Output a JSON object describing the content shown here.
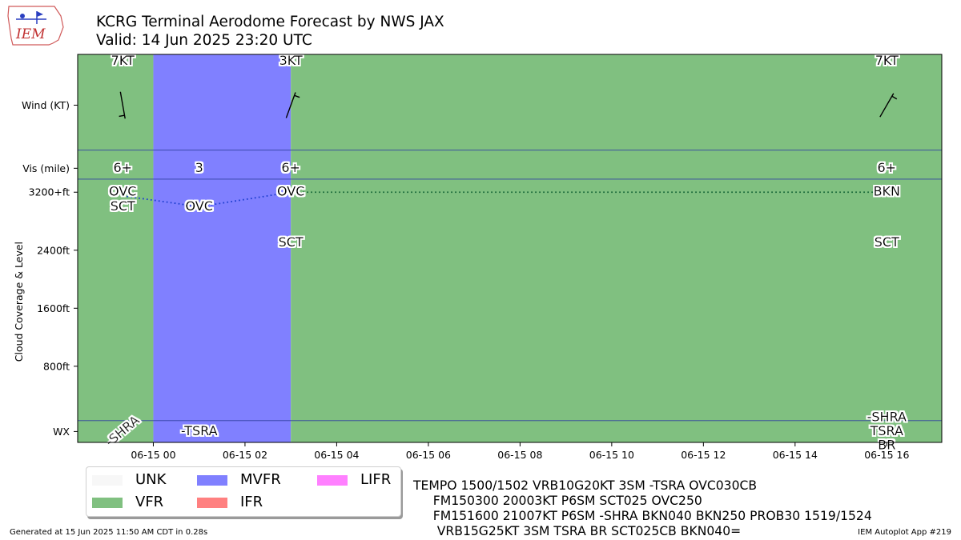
{
  "header": {
    "title": "KCRG Terminal Aerodome Forecast by NWS JAX",
    "subtitle": "Valid: 14 Jun 2025 23:20 UTC",
    "logo_text": "IEM"
  },
  "footer": {
    "generated": "Generated at 15 Jun 2025 11:50 AM CDT in 0.28s",
    "app": "IEM Autoplot App #219"
  },
  "legend": [
    {
      "label": "UNK",
      "color": "#f7f7f7"
    },
    {
      "label": "VFR",
      "color": "#80c080"
    },
    {
      "label": "MVFR",
      "color": "#8080ff"
    },
    {
      "label": "IFR",
      "color": "#ff8080"
    },
    {
      "label": "LIFR",
      "color": "#ff80ff"
    }
  ],
  "taf_text": [
    "TEMPO 1500/1502 VRB10G20KT 3SM -TSRA OVC030CB",
    "     FM150300 20003KT P6SM SCT025 OVC250",
    "     FM151600 21007KT P6SM -SHRA BKN040 BKN250 PROB30 1519/1524",
    "      VRB15G25KT 3SM TSRA BR SCT025CB BKN040="
  ],
  "chart_data": {
    "type": "timeline",
    "ylabel": "Cloud Coverage & Level",
    "x_ticks": [
      "06-15 00",
      "06-15 02",
      "06-15 04",
      "06-15 06",
      "06-15 08",
      "06-15 10",
      "06-15 12",
      "06-15 14",
      "06-15 16"
    ],
    "x_tick_hours": [
      0,
      2,
      4,
      6,
      8,
      10,
      12,
      14,
      16
    ],
    "xlim_hours": [
      -1.65,
      17.2
    ],
    "y_ticks": [
      "WX",
      "800ft",
      "1600ft",
      "2400ft",
      "3200+ft",
      "Vis (mile)",
      "Wind (KT)"
    ],
    "y_tick_values": [
      -100,
      800,
      1600,
      2400,
      3200,
      3530,
      4400
    ],
    "ylim": [
      -250,
      5100
    ],
    "band_separators": [
      50,
      3380,
      3780
    ],
    "categories": [
      {
        "start": -1.65,
        "end": 0.0,
        "category": "VFR"
      },
      {
        "start": 0.0,
        "end": 3.0,
        "category": "MVFR"
      },
      {
        "start": 3.0,
        "end": 17.2,
        "category": "VFR"
      }
    ],
    "forecasts": [
      {
        "hour": -0.667,
        "wind_label": "7KT",
        "wind_dir": 350,
        "wind_speed": 7,
        "vis": "6+",
        "clouds": [
          {
            "cover": "OVC",
            "level": 3200
          },
          {
            "cover": "SCT",
            "level": 3000
          }
        ],
        "cloud_line_level": 3150,
        "wx": [
          "-SHRA"
        ],
        "wx_rotated": true
      },
      {
        "hour": 1.0,
        "wind_label": "",
        "wind_dir": null,
        "wind_speed": null,
        "vis": "3",
        "clouds": [
          {
            "cover": "OVC",
            "level": 3000
          }
        ],
        "cloud_line_level": 3000,
        "wx": [
          "-TSRA"
        ],
        "wx_rotated": false
      },
      {
        "hour": 3.0,
        "wind_label": "3KT",
        "wind_dir": 200,
        "wind_speed": 3,
        "vis": "6+",
        "clouds": [
          {
            "cover": "OVC",
            "level": 3200
          },
          {
            "cover": "SCT",
            "level": 2500
          }
        ],
        "cloud_line_level": 3200,
        "wx": [],
        "wx_rotated": false
      },
      {
        "hour": 16.0,
        "wind_label": "7KT",
        "wind_dir": 210,
        "wind_speed": 7,
        "vis": "6+",
        "clouds": [
          {
            "cover": "BKN",
            "level": 3200
          },
          {
            "cover": "SCT",
            "level": 2500
          }
        ],
        "cloud_line_level": 3200,
        "wx": [
          "-SHRA",
          "TSRA",
          "BR"
        ],
        "wx_rotated": false
      }
    ],
    "cloud_line_segments": [
      {
        "from": 0,
        "to": 1,
        "color": "#1f3fd0"
      },
      {
        "from": 1,
        "to": 2,
        "color": "#1f3fd0"
      },
      {
        "from": 2,
        "to": 3,
        "color": "#1a6a3a"
      }
    ],
    "category_colors": {
      "VFR": "#80c080",
      "MVFR": "#8080ff",
      "IFR": "#ff8080",
      "LIFR": "#ff80ff",
      "UNK": "#f7f7f7"
    }
  }
}
